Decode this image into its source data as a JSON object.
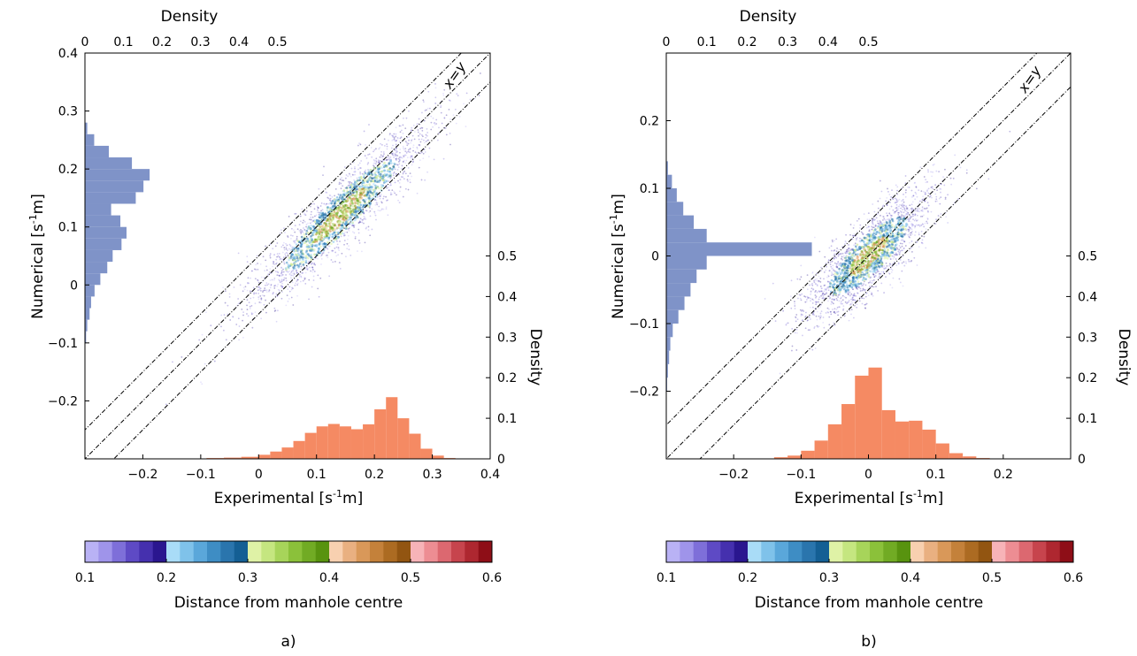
{
  "colors": {
    "scatter_base": "#6a5acd",
    "hist_y": "#7f93c8",
    "hist_x": "#f58a63",
    "colormap": [
      "#b9b2f5",
      "#9f94ea",
      "#7e6fd9",
      "#5e4ac5",
      "#4530ae",
      "#2a168f",
      "#a9dcf7",
      "#7fc2ea",
      "#5aa7da",
      "#3e8dc4",
      "#2a75ad",
      "#145f94",
      "#dff2a6",
      "#c5e680",
      "#a7d45a",
      "#8bc13a",
      "#71ab24",
      "#58930f",
      "#f8d0b0",
      "#e9b081",
      "#d99859",
      "#c4813a",
      "#ac6b22",
      "#925511",
      "#f7b3b8",
      "#ed8d93",
      "#dc6870",
      "#c7444d",
      "#ae2730",
      "#8e0e17"
    ]
  },
  "chart_data": [
    {
      "id": "a",
      "type": "scatter",
      "caption": "a)",
      "xlabel": "Experimental [s⁻¹m]",
      "ylabel": "Numerical [s⁻¹m]",
      "top_label": "Density",
      "right_label": "Density",
      "xlim": [
        -0.3,
        0.4
      ],
      "ylim": [
        -0.3,
        0.4
      ],
      "xticks": [
        -0.2,
        -0.1,
        0,
        0.1,
        0.2,
        0.3,
        0.4
      ],
      "xtick_labels": [
        "−0.2",
        "−0.1",
        "0",
        "0.1",
        "0.2",
        "0.3",
        "0.4"
      ],
      "yticks": [
        -0.2,
        -0.1,
        0,
        0.1,
        0.2,
        0.3,
        0.4
      ],
      "ytick_labels": [
        "−0.2",
        "−0.1",
        "0",
        "0.1",
        "0.2",
        "0.3",
        "0.4"
      ],
      "top_density_ticks": [
        0,
        0.1,
        0.2,
        0.3,
        0.4,
        0.5
      ],
      "top_density_labels": [
        "0",
        "0.1",
        "0.2",
        "0.3",
        "0.4",
        "0.5"
      ],
      "right_density_ticks": [
        0,
        0.1,
        0.2,
        0.3,
        0.4,
        0.5
      ],
      "right_density_labels": [
        "0",
        "0.1",
        "0.2",
        "0.3",
        "0.4",
        "0.5"
      ],
      "density_max": 0.5,
      "identity_label": "x=y",
      "band_offset": 0.05,
      "y_hist": {
        "bin_edges": [
          -0.1,
          -0.08,
          -0.06,
          -0.04,
          -0.02,
          0,
          0.02,
          0.04,
          0.06,
          0.08,
          0.1,
          0.12,
          0.14,
          0.16,
          0.18,
          0.2,
          0.22,
          0.24,
          0.26,
          0.28
        ],
        "density": [
          0.003,
          0.006,
          0.012,
          0.016,
          0.025,
          0.04,
          0.058,
          0.072,
          0.095,
          0.108,
          0.092,
          0.068,
          0.132,
          0.152,
          0.168,
          0.122,
          0.062,
          0.024,
          0.006
        ]
      },
      "x_hist": {
        "bin_edges": [
          -0.12,
          -0.09,
          -0.06,
          -0.03,
          0,
          0.02,
          0.04,
          0.06,
          0.08,
          0.1,
          0.12,
          0.14,
          0.16,
          0.18,
          0.2,
          0.22,
          0.24,
          0.26,
          0.28,
          0.3,
          0.32,
          0.34
        ],
        "density": [
          0.001,
          0.002,
          0.003,
          0.005,
          0.01,
          0.018,
          0.028,
          0.044,
          0.064,
          0.08,
          0.086,
          0.08,
          0.073,
          0.085,
          0.122,
          0.152,
          0.1,
          0.062,
          0.025,
          0.008,
          0.002
        ]
      },
      "cloud": {
        "center": [
          0.14,
          0.12
        ],
        "spread_along": 0.11,
        "spread_across": 0.022,
        "points": 2200
      }
    },
    {
      "id": "b",
      "type": "scatter",
      "caption": "b)",
      "xlabel": "Experimental [s⁻¹m]",
      "ylabel": "Numerical [s⁻¹m]",
      "top_label": "Density",
      "right_label": "Density",
      "xlim": [
        -0.3,
        0.3
      ],
      "ylim": [
        -0.3,
        0.3
      ],
      "xticks": [
        -0.2,
        -0.1,
        0,
        0.1,
        0.2
      ],
      "xtick_labels": [
        "−0.2",
        "−0.1",
        "0",
        "0.1",
        "0.2"
      ],
      "yticks": [
        -0.2,
        -0.1,
        0,
        0.1,
        0.2
      ],
      "ytick_labels": [
        "−0.2",
        "−0.1",
        "0",
        "0.1",
        "0.2"
      ],
      "top_density_ticks": [
        0,
        0.1,
        0.2,
        0.3,
        0.4,
        0.5
      ],
      "top_density_labels": [
        "0",
        "0.1",
        "0.2",
        "0.3",
        "0.4",
        "0.5"
      ],
      "right_density_ticks": [
        0,
        0.1,
        0.2,
        0.3,
        0.4,
        0.5
      ],
      "right_density_labels": [
        "0",
        "0.1",
        "0.2",
        "0.3",
        "0.4",
        "0.5"
      ],
      "density_max": 0.5,
      "identity_label": "x=y",
      "band_offset": 0.05,
      "y_hist": {
        "bin_edges": [
          -0.2,
          -0.18,
          -0.16,
          -0.14,
          -0.12,
          -0.1,
          -0.08,
          -0.06,
          -0.04,
          -0.02,
          0,
          0.02,
          0.04,
          0.06,
          0.08,
          0.1,
          0.12,
          0.14
        ],
        "density": [
          0.002,
          0.004,
          0.007,
          0.01,
          0.016,
          0.03,
          0.045,
          0.06,
          0.075,
          0.1,
          0.36,
          0.1,
          0.068,
          0.042,
          0.026,
          0.014,
          0.004
        ]
      },
      "x_hist": {
        "bin_edges": [
          -0.14,
          -0.12,
          -0.1,
          -0.08,
          -0.06,
          -0.04,
          -0.02,
          0,
          0.02,
          0.04,
          0.06,
          0.08,
          0.1,
          0.12,
          0.14,
          0.16,
          0.18
        ],
        "density": [
          0.004,
          0.008,
          0.02,
          0.045,
          0.085,
          0.135,
          0.205,
          0.225,
          0.12,
          0.092,
          0.094,
          0.072,
          0.038,
          0.014,
          0.006,
          0.002
        ]
      },
      "cloud": {
        "center": [
          0.0,
          0.0
        ],
        "spread_along": 0.065,
        "spread_across": 0.02,
        "points": 2000
      }
    }
  ],
  "colorbars": [
    {
      "ticks": [
        0.1,
        0.2,
        0.3,
        0.4,
        0.5,
        0.6
      ],
      "tick_labels": [
        "0.1",
        "0.2",
        "0.3",
        "0.4",
        "0.5",
        "0.6"
      ],
      "label": "Distance from manhole centre",
      "range": [
        0.1,
        0.6
      ]
    },
    {
      "ticks": [
        0.1,
        0.2,
        0.3,
        0.4,
        0.5,
        0.6
      ],
      "tick_labels": [
        "0.1",
        "0.2",
        "0.3",
        "0.4",
        "0.5",
        "0.6"
      ],
      "label": "Distance from manhole centre",
      "range": [
        0.1,
        0.6
      ]
    }
  ]
}
